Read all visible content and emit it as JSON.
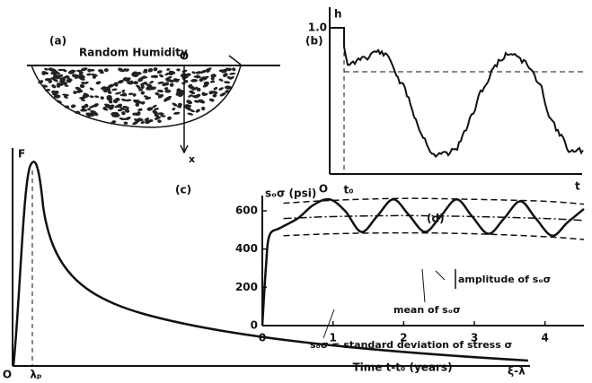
{
  "panel_a": {
    "label": "(a)",
    "annotation": "Random Humidity",
    "origin": "O",
    "axis": "x"
  },
  "panel_b": {
    "label": "(b)",
    "y_axis": "h",
    "y_tick": "1.0",
    "origin": "O",
    "x_tick": "t₀",
    "x_axis": "t"
  },
  "panel_c": {
    "label": "(c)",
    "y_axis": "F",
    "origin": "O",
    "x_tick": "λₚ",
    "x_axis": "ξ-λ"
  },
  "chart_data": {
    "type": "line",
    "label": "(d)",
    "y_label": "sₒσ (psi)",
    "x_label": "Time t-t₀ (years)",
    "annotations": [
      "amplitude of sₒσ",
      "mean of sₒσ",
      "sₒσ = standard deviation of stress σ"
    ],
    "xlim": [
      0,
      4.55
    ],
    "ylim": [
      0,
      680
    ],
    "xticks": [
      0,
      1,
      2,
      3,
      4
    ],
    "yticks": [
      0,
      200,
      400,
      600
    ],
    "series": [
      {
        "style": "solid",
        "x": [
          0,
          0.05,
          0.1,
          0.25,
          0.5,
          0.72,
          0.95,
          1.17,
          1.4,
          1.62,
          1.85,
          2.07,
          2.3,
          2.52,
          2.75,
          2.97,
          3.2,
          3.42,
          3.65,
          3.87,
          4.1,
          4.32,
          4.55
        ],
        "values": [
          0,
          300,
          470,
          510,
          560,
          630,
          660,
          600,
          490,
          570,
          660,
          580,
          490,
          570,
          660,
          570,
          480,
          560,
          650,
          560,
          470,
          540,
          610
        ]
      },
      {
        "style": "dashed",
        "x": [
          0.3,
          1,
          2,
          3,
          4,
          4.55
        ],
        "values": [
          640,
          655,
          665,
          660,
          650,
          635
        ]
      },
      {
        "style": "dashed",
        "x": [
          0.3,
          1,
          2,
          3,
          4,
          4.55
        ],
        "values": [
          470,
          480,
          485,
          480,
          465,
          450
        ]
      },
      {
        "style": "dashdot",
        "x": [
          0.3,
          1,
          2,
          3,
          4,
          4.55
        ],
        "values": [
          560,
          570,
          575,
          570,
          560,
          550
        ]
      }
    ]
  }
}
